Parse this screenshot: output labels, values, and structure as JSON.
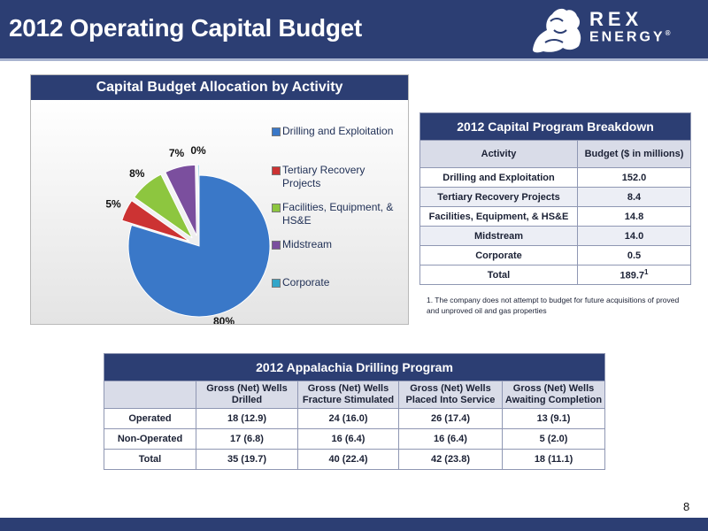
{
  "header": {
    "title": "2012 Operating Capital Budget"
  },
  "logo": {
    "line1": "REX",
    "line2": "ENERGY",
    "mark": "®"
  },
  "colors": {
    "navy": "#2c3e73",
    "drilling": "#3a78c8",
    "tertiary": "#cc3333",
    "facilities": "#8dc63f",
    "midstream": "#7b4f9e",
    "corporate": "#33a6c9"
  },
  "chart_data": {
    "type": "pie",
    "title": "Capital Budget Allocation by Activity",
    "slices": [
      {
        "label": "Drilling and Exploitation",
        "value": 80,
        "display": "80%",
        "color": "#3a78c8"
      },
      {
        "label": "Tertiary Recovery Projects",
        "value": 5,
        "display": "5%",
        "color": "#cc3333"
      },
      {
        "label": "Facilities, Equipment, & HS&E",
        "value": 8,
        "display": "8%",
        "color": "#8dc63f"
      },
      {
        "label": "Midstream",
        "value": 7,
        "display": "7%",
        "color": "#7b4f9e"
      },
      {
        "label": "Corporate",
        "value": 0.3,
        "display": "0%",
        "color": "#33a6c9"
      }
    ],
    "legend_position": "right"
  },
  "capital_table": {
    "title": "2012 Capital Program Breakdown",
    "headers": [
      "Activity",
      "Budget ($ in millions)"
    ],
    "rows": [
      [
        "Drilling and Exploitation",
        "152.0"
      ],
      [
        "Tertiary Recovery Projects",
        "8.4"
      ],
      [
        "Facilities, Equipment, & HS&E",
        "14.8"
      ],
      [
        "Midstream",
        "14.0"
      ],
      [
        "Corporate",
        "0.5"
      ]
    ],
    "total_label": "Total",
    "total_value": "189.7",
    "total_note": "1"
  },
  "footnote": "1. The company does not attempt to budget for future acquisitions of proved and unproved oil and gas properties",
  "drilling_table": {
    "title": "2012 Appalachia Drilling Program",
    "headers": [
      "",
      "Gross (Net) Wells Drilled",
      "Gross (Net) Wells Fracture Stimulated",
      "Gross (Net) Wells Placed Into Service",
      "Gross (Net) Wells Awaiting Completion"
    ],
    "rows": [
      [
        "Operated",
        "18 (12.9)",
        "24 (16.0)",
        "26 (17.4)",
        "13 (9.1)"
      ],
      [
        "Non-Operated",
        "17 (6.8)",
        "16 (6.4)",
        "16 (6.4)",
        "5 (2.0)"
      ],
      [
        "Total",
        "35 (19.7)",
        "40 (22.4)",
        "42 (23.8)",
        "18 (11.1)"
      ]
    ]
  },
  "page_number": "8"
}
